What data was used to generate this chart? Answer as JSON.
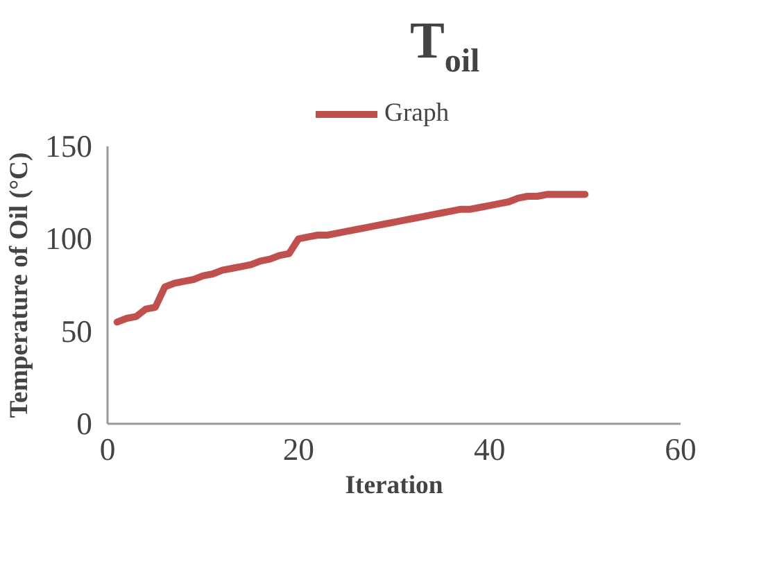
{
  "chart_data": {
    "type": "line",
    "title": "T$_{oil}$",
    "xlabel": "Iteration",
    "ylabel": "Temperature of Oil (°C)",
    "x": [
      1,
      2,
      3,
      4,
      5,
      6,
      7,
      8,
      9,
      10,
      11,
      12,
      13,
      14,
      15,
      16,
      17,
      18,
      19,
      20,
      21,
      22,
      23,
      24,
      25,
      26,
      27,
      28,
      29,
      30,
      31,
      32,
      33,
      34,
      35,
      36,
      37,
      38,
      39,
      40,
      41,
      42,
      43,
      44,
      45,
      46,
      47,
      48,
      49,
      50
    ],
    "series": [
      {
        "name": "Graph",
        "color": "#c0504d",
        "values": [
          55,
          57,
          58,
          62,
          63,
          74,
          76,
          77,
          78,
          80,
          81,
          83,
          84,
          85,
          86,
          88,
          89,
          91,
          92,
          100,
          101,
          102,
          102,
          103,
          104,
          105,
          106,
          107,
          108,
          109,
          110,
          111,
          112,
          113,
          114,
          115,
          116,
          116,
          117,
          118,
          119,
          120,
          122,
          123,
          123,
          124,
          124,
          124,
          124,
          124
        ]
      }
    ],
    "xlim": [
      0,
      60
    ],
    "xticks": [
      0,
      20,
      40,
      60
    ],
    "ylim": [
      0,
      150
    ],
    "yticks": [
      0,
      50,
      100,
      150
    ],
    "grid": false,
    "legend": "top",
    "marker": "none",
    "line_style": "solid"
  }
}
